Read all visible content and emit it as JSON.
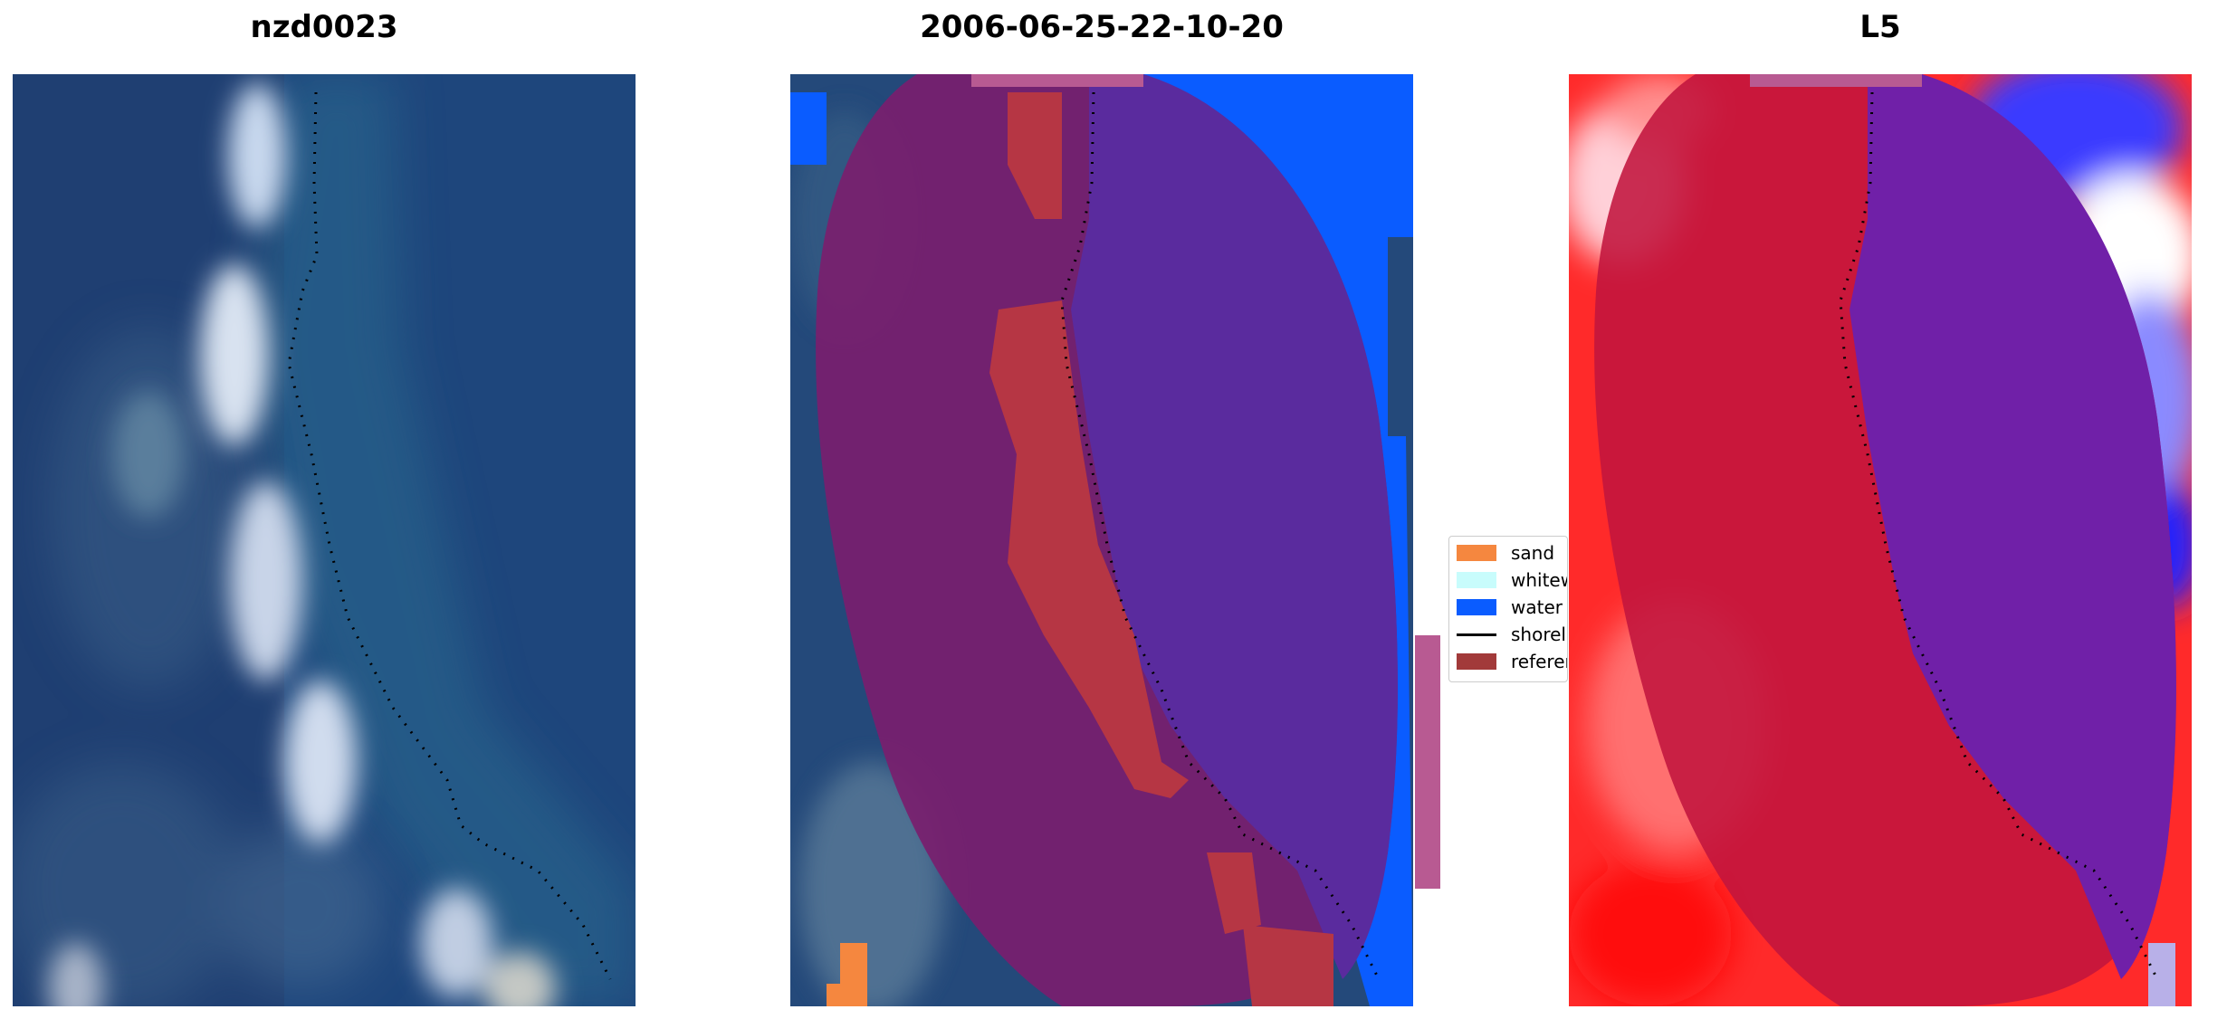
{
  "panels": [
    {
      "title": "nzd0023"
    },
    {
      "title": "2006-06-25-22-10-20"
    },
    {
      "title": "L5"
    }
  ],
  "legend": {
    "items": [
      {
        "label": "sand",
        "color": "#f5873f",
        "kind": "patch"
      },
      {
        "label": "whitewater",
        "color": "#c8fcfc",
        "kind": "patch"
      },
      {
        "label": "water",
        "color": "#0a5cff",
        "kind": "patch"
      },
      {
        "label": "shoreline",
        "color": "#000000",
        "kind": "line"
      },
      {
        "label": "reference region",
        "color": "#a23a3a",
        "kind": "patch"
      }
    ]
  },
  "colors": {
    "water_class": "#0a5cff",
    "reference_overlay": "#7a1e6e",
    "sand_class": "#f5873f",
    "landward_red": "#ff2020",
    "seaward_blue": "#3a2bd0"
  }
}
